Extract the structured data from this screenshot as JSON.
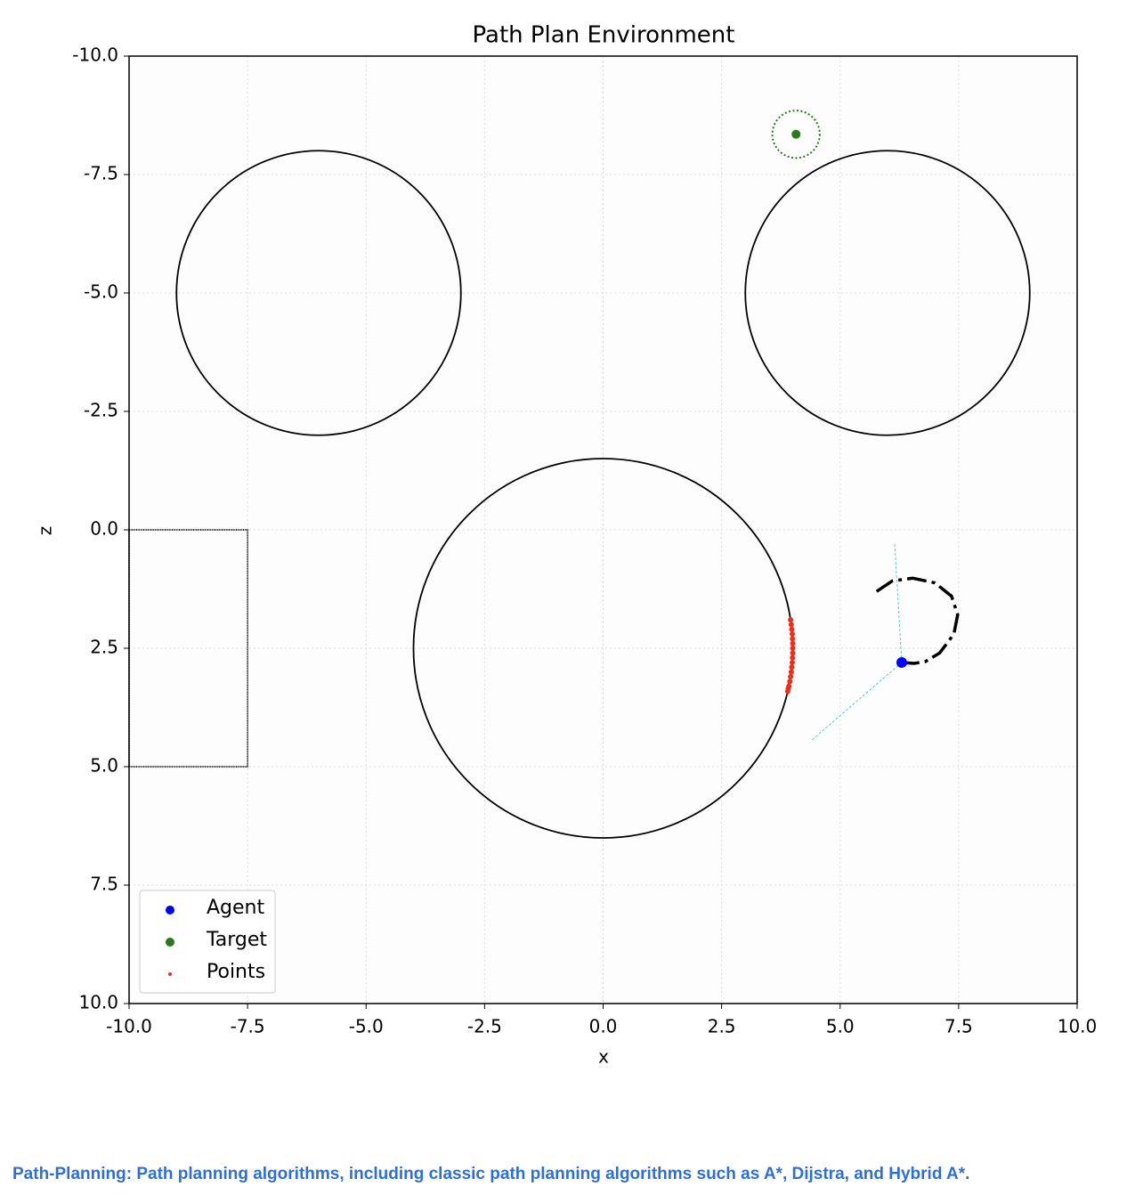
{
  "chart_data": {
    "type": "scatter",
    "title": "Path Plan Environment",
    "x_label": "x",
    "y_label": "z",
    "xlim": [
      -10,
      10
    ],
    "ylim": [
      -10,
      10
    ],
    "y_inverted": true,
    "grid": true,
    "legend": "lower left",
    "xticks": [
      {
        "value": -10,
        "label": "-10.0"
      },
      -7.5,
      {
        "value": -5,
        "label": "-5.0"
      },
      -2.5,
      {
        "value": 0,
        "label": "0.0"
      },
      2.5,
      {
        "value": 5,
        "label": "5.0"
      },
      7.5,
      {
        "value": 10,
        "label": "10.0"
      }
    ],
    "yticks": [
      {
        "value": -10,
        "label": "-10.0"
      },
      -7.5,
      {
        "value": -5,
        "label": "-5.0"
      },
      -2.5,
      {
        "value": 0,
        "label": "0.0"
      },
      2.5,
      {
        "value": 5,
        "label": "5.0"
      },
      7.5,
      {
        "value": 10,
        "label": "10.0"
      }
    ],
    "circles": [
      {
        "x": -6,
        "y": -5,
        "r": 3
      },
      {
        "x": 6,
        "y": -5,
        "r": 3
      },
      {
        "x": 0,
        "y": 2.5,
        "r": 4
      }
    ],
    "rectangles": [
      {
        "x0": -10,
        "x1": -7.5,
        "y0": 0,
        "y1": 5
      }
    ],
    "target_radius": 0.5,
    "rays": [
      {
        "x": [
          6.3,
          6.15
        ],
        "values": [
          2.8,
          0.28
        ]
      },
      {
        "x": [
          6.3,
          4.4
        ],
        "values": [
          2.8,
          4.44
        ]
      }
    ],
    "trajectory": {
      "x": [
        5.77,
        6.1,
        6.53,
        7.0,
        7.35,
        7.48,
        7.4,
        7.1,
        6.8,
        6.56,
        6.3
      ],
      "values": [
        1.3,
        1.08,
        1.02,
        1.12,
        1.4,
        1.79,
        2.2,
        2.6,
        2.78,
        2.82,
        2.8
      ]
    },
    "series": [
      {
        "name": "Agent",
        "color": "#0000ff",
        "x": [
          6.3
        ],
        "values": [
          2.8
        ]
      },
      {
        "name": "Target",
        "color": "#2a7a1d",
        "x": [
          4.07
        ],
        "values": [
          -8.35
        ]
      },
      {
        "name": "Points",
        "color": "#e8321f",
        "x": [
          3.955,
          3.97,
          3.98,
          3.99,
          3.995,
          4.0,
          4.0,
          4.0,
          3.995,
          3.99,
          3.98,
          3.97,
          3.955,
          3.94,
          3.92,
          3.905,
          3.895
        ],
        "values": [
          1.9,
          2.0,
          2.1,
          2.2,
          2.3,
          2.4,
          2.5,
          2.6,
          2.7,
          2.8,
          2.9,
          3.0,
          3.1,
          3.2,
          3.3,
          3.35,
          3.41
        ]
      }
    ]
  },
  "caption": "Path-Planning: Path planning algorithms, including classic path planning algorithms such as A*, Dijstra, and Hybrid A*."
}
